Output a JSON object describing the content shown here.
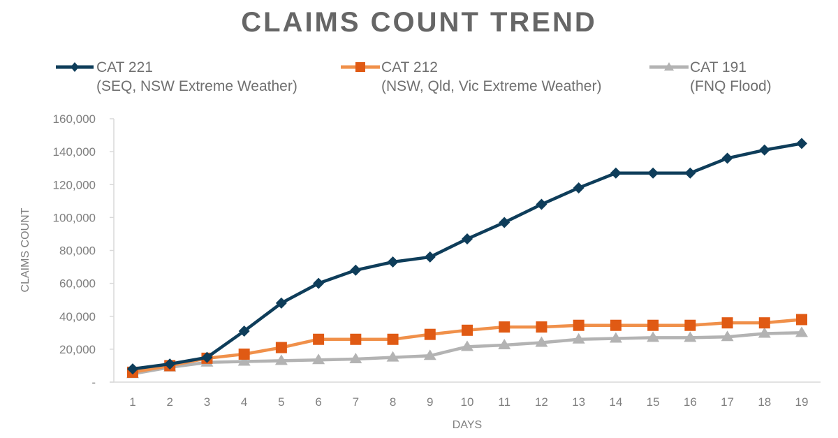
{
  "header": {
    "title": "CLAIMS COUNT TREND"
  },
  "legend": [
    {
      "name": "CAT 221",
      "subtitle": "(SEQ, NSW Extreme Weather)",
      "marker": "diamond",
      "color": "#0e3d5a"
    },
    {
      "name": "CAT 212",
      "subtitle": "(NSW, Qld, Vic Extreme Weather)",
      "marker": "square",
      "color": "#e05a14",
      "line_color": "#f0904a"
    },
    {
      "name": "CAT 191",
      "subtitle": "(FNQ Flood)",
      "marker": "triangle",
      "color": "#b3b3b3"
    }
  ],
  "axes": {
    "xlabel": "DAYS",
    "ylabel": "CLAIMS COUNT",
    "y_ticks": [
      "-",
      "20,000",
      "40,000",
      "60,000",
      "80,000",
      "100,000",
      "120,000",
      "140,000",
      "160,000"
    ]
  },
  "chart_data": {
    "type": "line",
    "title": "CLAIMS COUNT TREND",
    "xlabel": "DAYS",
    "ylabel": "CLAIMS COUNT",
    "x": [
      1,
      2,
      3,
      4,
      5,
      6,
      7,
      8,
      9,
      10,
      11,
      12,
      13,
      14,
      15,
      16,
      17,
      18,
      19
    ],
    "ylim": [
      0,
      160000
    ],
    "y_tick_step": 20000,
    "grid": false,
    "legend_position": "top",
    "series": [
      {
        "name": "CAT 221 (SEQ, NSW Extreme Weather)",
        "marker": "diamond",
        "color": "#0e3d5a",
        "values": [
          8000,
          11000,
          15000,
          31000,
          48000,
          60000,
          68000,
          73000,
          76000,
          87000,
          97000,
          108000,
          118000,
          127000,
          127000,
          127000,
          136000,
          141000,
          145000
        ]
      },
      {
        "name": "CAT 212 (NSW, Qld, Vic Extreme Weather)",
        "marker": "square",
        "color": "#e05a14",
        "values": [
          6000,
          10000,
          14500,
          17000,
          21000,
          26000,
          26000,
          26000,
          29000,
          31500,
          33500,
          33500,
          34500,
          34500,
          34500,
          34500,
          36000,
          36000,
          38000
        ]
      },
      {
        "name": "CAT 191 (FNQ Flood)",
        "marker": "triangle",
        "color": "#b3b3b3",
        "values": [
          5000,
          9000,
          12000,
          12500,
          13000,
          13500,
          14000,
          15000,
          16000,
          21500,
          22500,
          24000,
          26000,
          26500,
          27000,
          27000,
          27500,
          29500,
          30000
        ]
      }
    ]
  }
}
